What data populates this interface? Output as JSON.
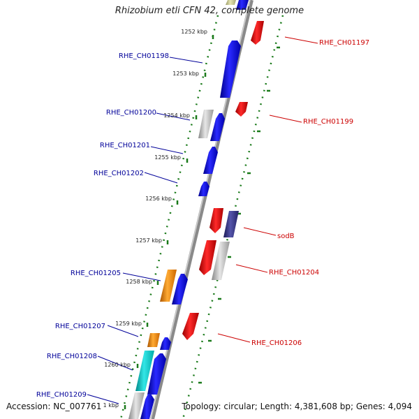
{
  "title": "Rhizobium etli CFN 42, complete genome",
  "accession": "Accession: NC_007761",
  "topology": "Topology: circular; Length: 4,381,608 bp; Genes: 4,094",
  "ticks": [
    "1252 kbp",
    "1253 kbp",
    "1254 kbp",
    "1255 kbp",
    "1256 kbp",
    "1257 kbp",
    "1258 kbp",
    "1259 kbp",
    "1260 kbp",
    "1 kbp"
  ],
  "genes_left": [
    "RHE_CH01198",
    "RHE_CH01200",
    "RHE_CH01201",
    "RHE_CH01202",
    "RHE_CH01205",
    "RHE_CH01207",
    "RHE_CH01208",
    "RHE_CH01209"
  ],
  "genes_right": [
    "RHE_CH01197",
    "RHE_CH01199",
    "sodB",
    "RHE_CH01204",
    "RHE_CH01206"
  ],
  "colors": {
    "forward": "#1010e0",
    "reverse": "#ee1111",
    "left_label": "#000099",
    "right_label": "#cc0000",
    "ruler": "#1a7a1a",
    "backbone": "#888888",
    "gray_gene": "#bbbbbb",
    "orange_gene": "#ff8800",
    "cyan_gene": "#00cccc",
    "navy_gene": "#333388",
    "olive_gene": "#cccc88"
  }
}
